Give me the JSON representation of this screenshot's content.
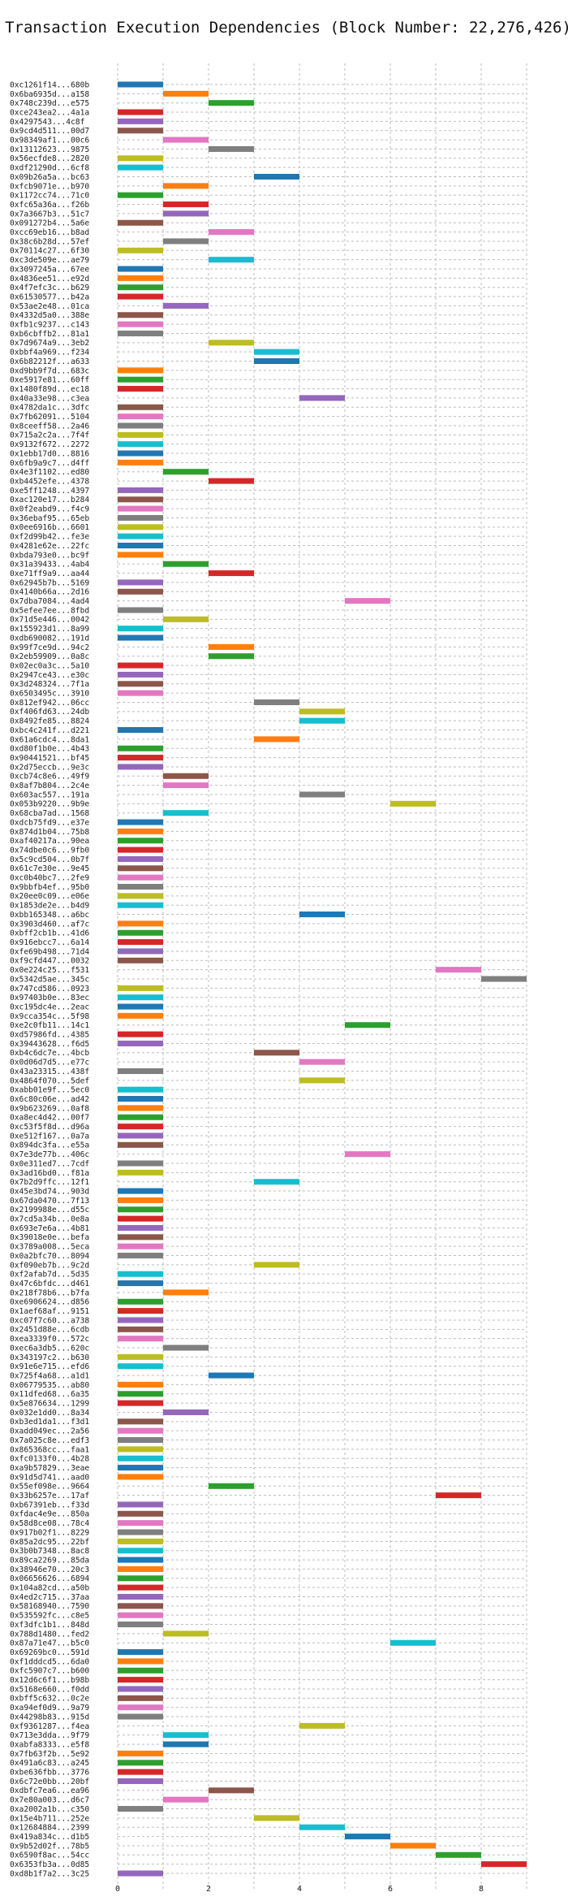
{
  "chart_data": {
    "type": "gantt",
    "title": "Transaction Execution Dependencies (Block Number: 22,276,426)",
    "x_ticks": [
      0,
      2,
      4,
      6,
      8
    ],
    "xlim": [
      0,
      9
    ],
    "grid": true,
    "palette": {
      "blue": "#1f77b4",
      "orange": "#ff7f0e",
      "green": "#2ca02c",
      "red": "#d62728",
      "purple": "#9467bd",
      "brown": "#8c564b",
      "pink": "#e377c2",
      "gray": "#7f7f7f",
      "olive": "#bcbd22",
      "cyan": "#17becf"
    },
    "rows": [
      {
        "label": "0xc1261f14...680b",
        "start": 0,
        "color": "blue"
      },
      {
        "label": "0x6ba6935d...a158",
        "start": 1,
        "color": "orange"
      },
      {
        "label": "0x748c239d...e575",
        "start": 2,
        "color": "green"
      },
      {
        "label": "0xce243ea2...4a1a",
        "start": 0,
        "color": "red"
      },
      {
        "label": "0x4297543...4c8f",
        "start": 0,
        "color": "purple"
      },
      {
        "label": "0x9cd4d511...00d7",
        "start": 0,
        "color": "brown"
      },
      {
        "label": "0x98349af1...00c6",
        "start": 1,
        "color": "pink"
      },
      {
        "label": "0x13112623...9875",
        "start": 2,
        "color": "gray"
      },
      {
        "label": "0x56ecfde8...2820",
        "start": 0,
        "color": "olive"
      },
      {
        "label": "0xdf21290d...6cf8",
        "start": 0,
        "color": "cyan"
      },
      {
        "label": "0x09b26a5a...bc63",
        "start": 3,
        "color": "blue"
      },
      {
        "label": "0xfcb9071e...b970",
        "start": 1,
        "color": "orange"
      },
      {
        "label": "0x1172cc74...71c0",
        "start": 0,
        "color": "green"
      },
      {
        "label": "0xfc65a36a...f26b",
        "start": 1,
        "color": "red"
      },
      {
        "label": "0x7a3667b3...51c7",
        "start": 1,
        "color": "purple"
      },
      {
        "label": "0x091272b4...5a6e",
        "start": 0,
        "color": "brown"
      },
      {
        "label": "0xcc69eb16...b8ad",
        "start": 2,
        "color": "pink"
      },
      {
        "label": "0x38c6b28d...57ef",
        "start": 1,
        "color": "gray"
      },
      {
        "label": "0x70114c27...6f30",
        "start": 0,
        "color": "olive"
      },
      {
        "label": "0xc3de509e...ae79",
        "start": 2,
        "color": "cyan"
      },
      {
        "label": "0x3097245a...67ee",
        "start": 0,
        "color": "blue"
      },
      {
        "label": "0x4836ee51...e92d",
        "start": 0,
        "color": "orange"
      },
      {
        "label": "0x4f7efc3c...b629",
        "start": 0,
        "color": "green"
      },
      {
        "label": "0x61530577...b42a",
        "start": 0,
        "color": "red"
      },
      {
        "label": "0x53ae2e48...01ca",
        "start": 1,
        "color": "purple"
      },
      {
        "label": "0x4332d5a0...388e",
        "start": 0,
        "color": "brown"
      },
      {
        "label": "0xfb1c9237...c143",
        "start": 0,
        "color": "pink"
      },
      {
        "label": "0xb6cbffb2...81a1",
        "start": 0,
        "color": "gray"
      },
      {
        "label": "0x7d9674a9...3eb2",
        "start": 2,
        "color": "olive"
      },
      {
        "label": "0xbbf4a969...f234",
        "start": 3,
        "color": "cyan"
      },
      {
        "label": "0x6b82212f...a633",
        "start": 3,
        "color": "blue"
      },
      {
        "label": "0xd9bb9f7d...683c",
        "start": 0,
        "color": "orange"
      },
      {
        "label": "0xe5917e81...60ff",
        "start": 0,
        "color": "green"
      },
      {
        "label": "0x1480f89d...ec18",
        "start": 0,
        "color": "red"
      },
      {
        "label": "0x40a33e98...c3ea",
        "start": 4,
        "color": "purple"
      },
      {
        "label": "0x4782da1c...3dfc",
        "start": 0,
        "color": "brown"
      },
      {
        "label": "0x7fb62091...5104",
        "start": 0,
        "color": "pink"
      },
      {
        "label": "0x8ceeff58...2a46",
        "start": 0,
        "color": "gray"
      },
      {
        "label": "0x715a2c2a...7f4f",
        "start": 0,
        "color": "olive"
      },
      {
        "label": "0x9132f672...2272",
        "start": 0,
        "color": "cyan"
      },
      {
        "label": "0x1ebb17d0...8816",
        "start": 0,
        "color": "blue"
      },
      {
        "label": "0x6fb9a9c7...d4ff",
        "start": 0,
        "color": "orange"
      },
      {
        "label": "0x4e3f1102...ed80",
        "start": 1,
        "color": "green"
      },
      {
        "label": "0xb4452efe...4378",
        "start": 2,
        "color": "red"
      },
      {
        "label": "0xe5ff1248...4397",
        "start": 0,
        "color": "purple"
      },
      {
        "label": "0xac120e17...b284",
        "start": 0,
        "color": "brown"
      },
      {
        "label": "0x0f2eabd9...f4c9",
        "start": 0,
        "color": "pink"
      },
      {
        "label": "0x36ebaf95...65eb",
        "start": 0,
        "color": "gray"
      },
      {
        "label": "0x0ee6916b...6601",
        "start": 0,
        "color": "olive"
      },
      {
        "label": "0xf2d99b42...fe3e",
        "start": 0,
        "color": "cyan"
      },
      {
        "label": "0x4281e62e...22fc",
        "start": 0,
        "color": "blue"
      },
      {
        "label": "0xbda793e0...bc9f",
        "start": 0,
        "color": "orange"
      },
      {
        "label": "0x31a39433...4ab4",
        "start": 1,
        "color": "green"
      },
      {
        "label": "0xe71ff9a9...aa44",
        "start": 2,
        "color": "red"
      },
      {
        "label": "0x62945b7b...5169",
        "start": 0,
        "color": "purple"
      },
      {
        "label": "0x4140b66a...2d16",
        "start": 0,
        "color": "brown"
      },
      {
        "label": "0x7dba7084...4ad4",
        "start": 5,
        "color": "pink"
      },
      {
        "label": "0x5efee7ee...8fbd",
        "start": 0,
        "color": "gray"
      },
      {
        "label": "0x71d5e446...0042",
        "start": 1,
        "color": "olive"
      },
      {
        "label": "0x155923d1...8a99",
        "start": 0,
        "color": "cyan"
      },
      {
        "label": "0xdb690082...191d",
        "start": 0,
        "color": "blue"
      },
      {
        "label": "0x99f7ce9d...94c2",
        "start": 2,
        "color": "orange"
      },
      {
        "label": "0x2eb59909...0a8c",
        "start": 2,
        "color": "green"
      },
      {
        "label": "0x02ec0a3c...5a10",
        "start": 0,
        "color": "red"
      },
      {
        "label": "0x2947ce43...e30c",
        "start": 0,
        "color": "purple"
      },
      {
        "label": "0x3d248324...7f1a",
        "start": 0,
        "color": "brown"
      },
      {
        "label": "0x6503495c...3910",
        "start": 0,
        "color": "pink"
      },
      {
        "label": "0x812ef942...06cc",
        "start": 3,
        "color": "gray"
      },
      {
        "label": "0xf406fd63...24db",
        "start": 4,
        "color": "olive"
      },
      {
        "label": "0x8492fe85...8824",
        "start": 4,
        "color": "cyan"
      },
      {
        "label": "0xbc4c241f...d221",
        "start": 0,
        "color": "blue"
      },
      {
        "label": "0x61a6cdc4...8da1",
        "start": 3,
        "color": "orange"
      },
      {
        "label": "0xd80f1b0e...4b43",
        "start": 0,
        "color": "green"
      },
      {
        "label": "0x90441521...bf45",
        "start": 0,
        "color": "red"
      },
      {
        "label": "0x2d75eccb...9e3c",
        "start": 0,
        "color": "purple"
      },
      {
        "label": "0xcb74c8e6...49f9",
        "start": 1,
        "color": "brown"
      },
      {
        "label": "0x8af7b804...2c4e",
        "start": 1,
        "color": "pink"
      },
      {
        "label": "0x603ac557...191a",
        "start": 4,
        "color": "gray"
      },
      {
        "label": "0x053b9220...9b9e",
        "start": 6,
        "color": "olive"
      },
      {
        "label": "0x68cba7ad...1568",
        "start": 1,
        "color": "cyan"
      },
      {
        "label": "0xdcb75fd9...e37e",
        "start": 0,
        "color": "blue"
      },
      {
        "label": "0x874d1b04...75b8",
        "start": 0,
        "color": "orange"
      },
      {
        "label": "0xaf40217a...90ea",
        "start": 0,
        "color": "green"
      },
      {
        "label": "0x74dbe0c6...9fb0",
        "start": 0,
        "color": "red"
      },
      {
        "label": "0x5c9cd504...0b7f",
        "start": 0,
        "color": "purple"
      },
      {
        "label": "0x61c7e30e...9e45",
        "start": 0,
        "color": "brown"
      },
      {
        "label": "0xc0b40bc7...2fe9",
        "start": 0,
        "color": "pink"
      },
      {
        "label": "0x9bbfb4ef...95b0",
        "start": 0,
        "color": "gray"
      },
      {
        "label": "0x20ee0c09...e06e",
        "start": 0,
        "color": "olive"
      },
      {
        "label": "0x1853de2e...b4d9",
        "start": 0,
        "color": "cyan"
      },
      {
        "label": "0xbb165348...a6bc",
        "start": 4,
        "color": "blue"
      },
      {
        "label": "0x3903d460...af7c",
        "start": 0,
        "color": "orange"
      },
      {
        "label": "0xbff2cb1b...41d6",
        "start": 0,
        "color": "green"
      },
      {
        "label": "0x916ebcc7...6a14",
        "start": 0,
        "color": "red"
      },
      {
        "label": "0xfe69b498...71d4",
        "start": 0,
        "color": "purple"
      },
      {
        "label": "0xf9cfd447...0032",
        "start": 0,
        "color": "brown"
      },
      {
        "label": "0x0e224c25...f531",
        "start": 7,
        "color": "pink"
      },
      {
        "label": "0x5342d5ae...345c",
        "start": 8,
        "color": "gray"
      },
      {
        "label": "0x747cd586...0923",
        "start": 0,
        "color": "olive"
      },
      {
        "label": "0x97403b0e...83ec",
        "start": 0,
        "color": "cyan"
      },
      {
        "label": "0xc195dc4e...2eac",
        "start": 0,
        "color": "blue"
      },
      {
        "label": "0x9cca354c...5f98",
        "start": 0,
        "color": "orange"
      },
      {
        "label": "0xe2c0fb11...14c1",
        "start": 5,
        "color": "green"
      },
      {
        "label": "0xd57986fd...4385",
        "start": 0,
        "color": "red"
      },
      {
        "label": "0x39443628...f6d5",
        "start": 0,
        "color": "purple"
      },
      {
        "label": "0xb4c6dc7e...4bcb",
        "start": 3,
        "color": "brown"
      },
      {
        "label": "0x0d06d7d5...e77c",
        "start": 4,
        "color": "pink"
      },
      {
        "label": "0x43a23315...438f",
        "start": 0,
        "color": "gray"
      },
      {
        "label": "0x4864f070...5def",
        "start": 4,
        "color": "olive"
      },
      {
        "label": "0xabb01e9f...5ec0",
        "start": 0,
        "color": "cyan"
      },
      {
        "label": "0x6c80c06e...ad42",
        "start": 0,
        "color": "blue"
      },
      {
        "label": "0x9b623269...0af8",
        "start": 0,
        "color": "orange"
      },
      {
        "label": "0xa8ec4d42...00f7",
        "start": 0,
        "color": "green"
      },
      {
        "label": "0xc53f5f8d...d96a",
        "start": 0,
        "color": "red"
      },
      {
        "label": "0xe512f167...0a7a",
        "start": 0,
        "color": "purple"
      },
      {
        "label": "0x894dc3fa...e55a",
        "start": 0,
        "color": "brown"
      },
      {
        "label": "0x7e3de77b...406c",
        "start": 5,
        "color": "pink"
      },
      {
        "label": "0x0e311ed7...7cdf",
        "start": 0,
        "color": "gray"
      },
      {
        "label": "0x3ad16bd0...f81a",
        "start": 0,
        "color": "olive"
      },
      {
        "label": "0x7b2d9ffc...12f1",
        "start": 3,
        "color": "cyan"
      },
      {
        "label": "0x45e3bd74...903d",
        "start": 0,
        "color": "blue"
      },
      {
        "label": "0x67da0470...7f13",
        "start": 0,
        "color": "orange"
      },
      {
        "label": "0x2199988e...d55c",
        "start": 0,
        "color": "green"
      },
      {
        "label": "0x7cd5a34b...0e8a",
        "start": 0,
        "color": "red"
      },
      {
        "label": "0x693e7e6a...4b81",
        "start": 0,
        "color": "purple"
      },
      {
        "label": "0x39018e0e...befa",
        "start": 0,
        "color": "brown"
      },
      {
        "label": "0x3789a008...5eca",
        "start": 0,
        "color": "pink"
      },
      {
        "label": "0x0a2bfc70...8094",
        "start": 0,
        "color": "gray"
      },
      {
        "label": "0xf090eb7b...9c2d",
        "start": 3,
        "color": "olive"
      },
      {
        "label": "0xf2afab7d...5d35",
        "start": 0,
        "color": "cyan"
      },
      {
        "label": "0x47c6bfdc...d461",
        "start": 0,
        "color": "blue"
      },
      {
        "label": "0x218f78b6...b7fa",
        "start": 1,
        "color": "orange"
      },
      {
        "label": "0xe6906624...d856",
        "start": 0,
        "color": "green"
      },
      {
        "label": "0x1aef68af...9151",
        "start": 0,
        "color": "red"
      },
      {
        "label": "0xc07f7c60...a738",
        "start": 0,
        "color": "purple"
      },
      {
        "label": "0x2451d88e...6cdb",
        "start": 0,
        "color": "brown"
      },
      {
        "label": "0xea3339f0...572c",
        "start": 0,
        "color": "pink"
      },
      {
        "label": "0xec6a3db5...620c",
        "start": 1,
        "color": "gray"
      },
      {
        "label": "0x343197c2...b630",
        "start": 0,
        "color": "olive"
      },
      {
        "label": "0x91e6e715...efd6",
        "start": 0,
        "color": "cyan"
      },
      {
        "label": "0x725f4a68...a1d1",
        "start": 2,
        "color": "blue"
      },
      {
        "label": "0x06779535...ab80",
        "start": 0,
        "color": "orange"
      },
      {
        "label": "0x11dfed68...6a35",
        "start": 0,
        "color": "green"
      },
      {
        "label": "0x5e876634...1299",
        "start": 0,
        "color": "red"
      },
      {
        "label": "0x032e1dd0...8a34",
        "start": 1,
        "color": "purple"
      },
      {
        "label": "0xb3ed1da1...f3d1",
        "start": 0,
        "color": "brown"
      },
      {
        "label": "0xadd049ec...2a56",
        "start": 0,
        "color": "pink"
      },
      {
        "label": "0x7a025c8e...edf3",
        "start": 0,
        "color": "gray"
      },
      {
        "label": "0x865368cc...faa1",
        "start": 0,
        "color": "olive"
      },
      {
        "label": "0xfc0133f0...4b28",
        "start": 0,
        "color": "cyan"
      },
      {
        "label": "0xa9b57829...3eae",
        "start": 0,
        "color": "blue"
      },
      {
        "label": "0x91d5d741...aad0",
        "start": 0,
        "color": "orange"
      },
      {
        "label": "0x55ef098e...9664",
        "start": 2,
        "color": "green"
      },
      {
        "label": "0x33b6257e...17af",
        "start": 7,
        "color": "red"
      },
      {
        "label": "0xb67391eb...f33d",
        "start": 0,
        "color": "purple"
      },
      {
        "label": "0xfdac4e9e...850a",
        "start": 0,
        "color": "brown"
      },
      {
        "label": "0x58d8ce08...78c4",
        "start": 0,
        "color": "pink"
      },
      {
        "label": "0x917b02f1...8229",
        "start": 0,
        "color": "gray"
      },
      {
        "label": "0x85a2dc95...22bf",
        "start": 0,
        "color": "olive"
      },
      {
        "label": "0x3b0b7348...8ac8",
        "start": 0,
        "color": "cyan"
      },
      {
        "label": "0x89ca2269...85da",
        "start": 0,
        "color": "blue"
      },
      {
        "label": "0x38946e70...20c3",
        "start": 0,
        "color": "orange"
      },
      {
        "label": "0x06656626...6894",
        "start": 0,
        "color": "green"
      },
      {
        "label": "0x104a82cd...a50b",
        "start": 0,
        "color": "red"
      },
      {
        "label": "0x4ed2c715...37aa",
        "start": 0,
        "color": "purple"
      },
      {
        "label": "0x58168940...7590",
        "start": 0,
        "color": "brown"
      },
      {
        "label": "0x535592fc...c8e5",
        "start": 0,
        "color": "pink"
      },
      {
        "label": "0xf3dfc1b1...848d",
        "start": 0,
        "color": "gray"
      },
      {
        "label": "0x788d1480...fed2",
        "start": 1,
        "color": "olive"
      },
      {
        "label": "0x87a71e47...b5c0",
        "start": 6,
        "color": "cyan"
      },
      {
        "label": "0x69269bc0...591d",
        "start": 0,
        "color": "blue"
      },
      {
        "label": "0xf1dddcd5...6da0",
        "start": 0,
        "color": "orange"
      },
      {
        "label": "0xfc5907c7...b600",
        "start": 0,
        "color": "green"
      },
      {
        "label": "0x12d6c6f1...b98b",
        "start": 0,
        "color": "red"
      },
      {
        "label": "0x5168e660...f0dd",
        "start": 0,
        "color": "purple"
      },
      {
        "label": "0xbff5c632...0c2e",
        "start": 0,
        "color": "brown"
      },
      {
        "label": "0xa94ef0d9...9a79",
        "start": 0,
        "color": "pink"
      },
      {
        "label": "0x44298b83...915d",
        "start": 0,
        "color": "gray"
      },
      {
        "label": "0xf9361287...f4ea",
        "start": 4,
        "color": "olive"
      },
      {
        "label": "0x713e3dda...9f79",
        "start": 1,
        "color": "cyan"
      },
      {
        "label": "0xabfa8333...e5f8",
        "start": 1,
        "color": "blue"
      },
      {
        "label": "0x7fb63f2b...5e92",
        "start": 0,
        "color": "orange"
      },
      {
        "label": "0x491a6c83...a245",
        "start": 0,
        "color": "green"
      },
      {
        "label": "0xbe636fbb...3776",
        "start": 0,
        "color": "red"
      },
      {
        "label": "0x6c72e0bb...20bf",
        "start": 0,
        "color": "purple"
      },
      {
        "label": "0xdbfc7ea6...ea96",
        "start": 2,
        "color": "brown"
      },
      {
        "label": "0x7e80a003...d6c7",
        "start": 1,
        "color": "pink"
      },
      {
        "label": "0xa2002a1b...c350",
        "start": 0,
        "color": "gray"
      },
      {
        "label": "0x15e4b711...252e",
        "start": 3,
        "color": "olive"
      },
      {
        "label": "0x12684884...2399",
        "start": 4,
        "color": "cyan"
      },
      {
        "label": "0x419a834c...d1b5",
        "start": 5,
        "color": "blue"
      },
      {
        "label": "0x9b52d02f...78b5",
        "start": 6,
        "color": "orange"
      },
      {
        "label": "0x6590f8ac...54cc",
        "start": 7,
        "color": "green"
      },
      {
        "label": "0x6353fb3a...0d85",
        "start": 8,
        "color": "red"
      },
      {
        "label": "0xd8b1f7a2...3c25",
        "start": 0,
        "color": "purple"
      }
    ]
  }
}
